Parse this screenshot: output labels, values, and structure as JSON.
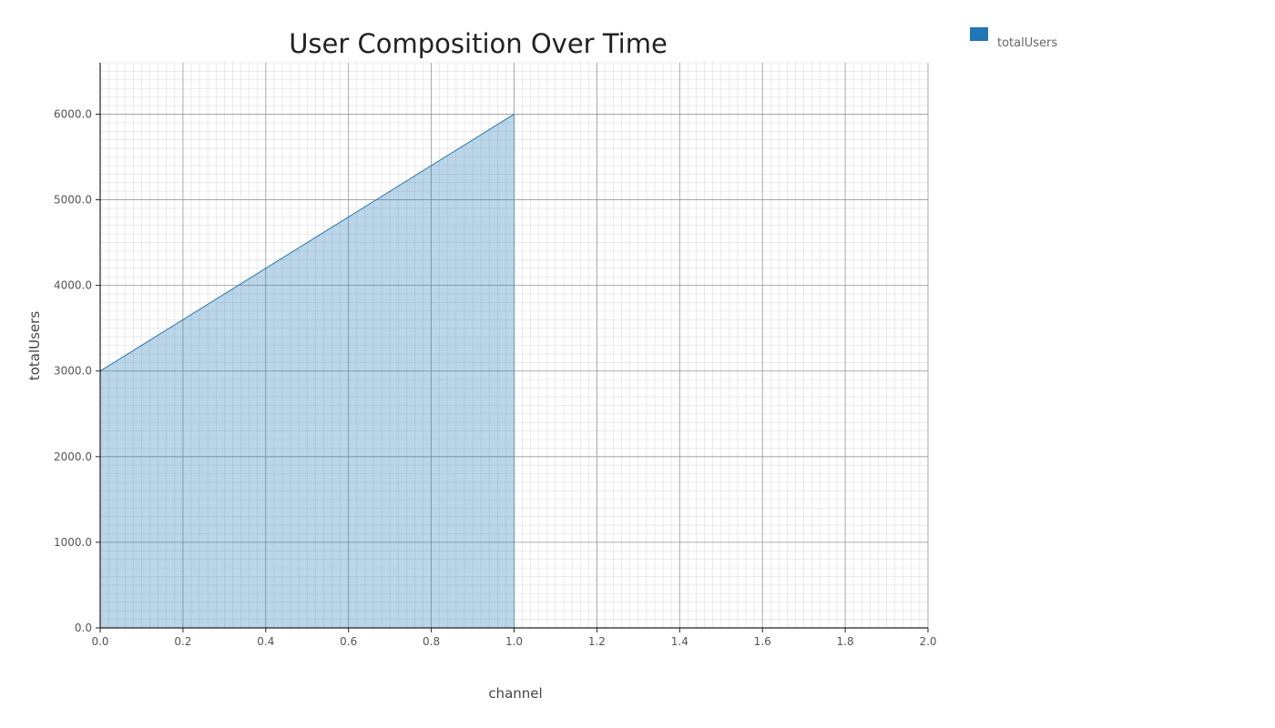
{
  "chart_data": {
    "type": "area",
    "title": "User Composition Over Time",
    "xlabel": "channel",
    "ylabel": "totalUsers",
    "xlim": [
      0,
      2
    ],
    "ylim": [
      0,
      6600
    ],
    "x_ticks": [
      0,
      0.2,
      0.4,
      0.6,
      0.8,
      1.0,
      1.2,
      1.4,
      1.6,
      1.8,
      2.0
    ],
    "x_tick_labels": [
      "0.0",
      "0.2",
      "0.4",
      "0.6",
      "0.8",
      "1.0",
      "1.2",
      "1.4",
      "1.6",
      "1.8",
      "2.0"
    ],
    "y_ticks": [
      0,
      1000,
      2000,
      3000,
      4000,
      5000,
      6000
    ],
    "y_tick_labels": [
      "0.0",
      "1000.0",
      "2000.0",
      "3000.0",
      "4000.0",
      "5000.0",
      "6000.0"
    ],
    "grid": true,
    "legend_position": "top-right",
    "series": [
      {
        "name": "totalUsers",
        "color": "#1f77b4",
        "x": [
          0,
          1
        ],
        "y": [
          3000,
          6000
        ]
      }
    ]
  }
}
